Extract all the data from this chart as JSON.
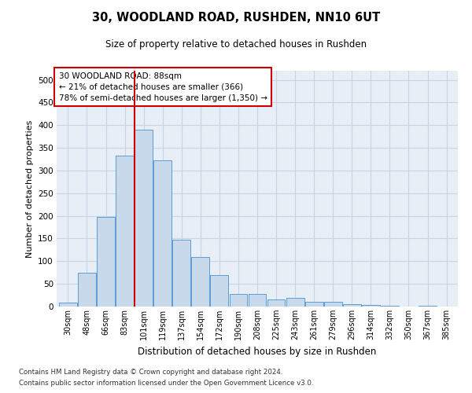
{
  "title_line1": "30, WOODLAND ROAD, RUSHDEN, NN10 6UT",
  "title_line2": "Size of property relative to detached houses in Rushden",
  "xlabel": "Distribution of detached houses by size in Rushden",
  "ylabel": "Number of detached properties",
  "footer_line1": "Contains HM Land Registry data © Crown copyright and database right 2024.",
  "footer_line2": "Contains public sector information licensed under the Open Government Licence v3.0.",
  "annotation_line1": "30 WOODLAND ROAD: 88sqm",
  "annotation_line2": "← 21% of detached houses are smaller (366)",
  "annotation_line3": "78% of semi-detached houses are larger (1,350) →",
  "bar_color": "#c9d9ec",
  "bar_edge_color": "#5b9bd5",
  "vline_color": "#cc0000",
  "vline_x": 3.5,
  "categories": [
    "30sqm",
    "48sqm",
    "66sqm",
    "83sqm",
    "101sqm",
    "119sqm",
    "137sqm",
    "154sqm",
    "172sqm",
    "190sqm",
    "208sqm",
    "225sqm",
    "243sqm",
    "261sqm",
    "279sqm",
    "296sqm",
    "314sqm",
    "332sqm",
    "350sqm",
    "367sqm",
    "385sqm"
  ],
  "values": [
    8,
    75,
    197,
    333,
    390,
    323,
    148,
    110,
    70,
    28,
    28,
    15,
    19,
    10,
    11,
    6,
    3,
    1,
    0,
    1,
    0
  ],
  "ylim": [
    0,
    520
  ],
  "yticks": [
    0,
    50,
    100,
    150,
    200,
    250,
    300,
    350,
    400,
    450,
    500
  ],
  "grid_color": "#c8d4e8",
  "plot_bg_color": "#e8eef6"
}
